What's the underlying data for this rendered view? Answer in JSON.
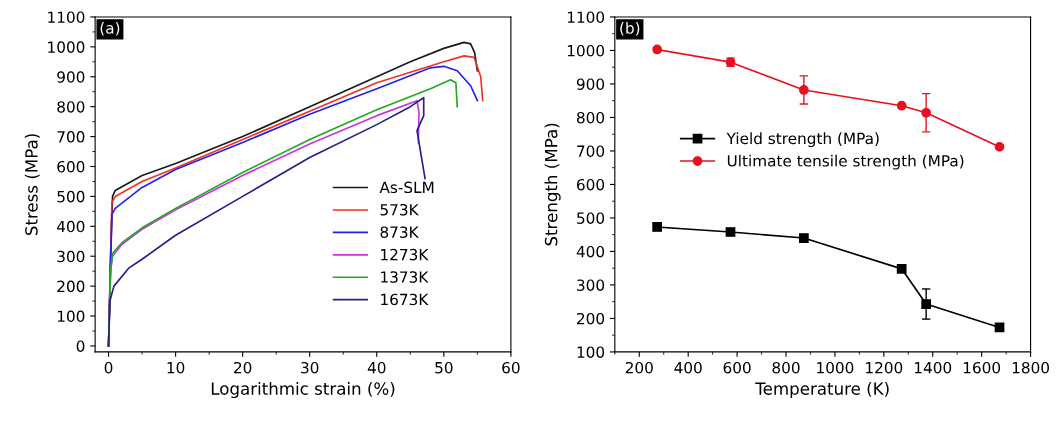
{
  "chart_data": [
    {
      "type": "line",
      "xlabel": "Logarithmic strain (%)",
      "ylabel": "Stress (MPa)",
      "annotations": [
        "(a)"
      ],
      "xlim": [
        -2,
        60
      ],
      "ylim": [
        -20,
        1100
      ],
      "xticks": [
        0,
        10,
        20,
        30,
        40,
        50,
        60
      ],
      "yticks": [
        0,
        100,
        200,
        300,
        400,
        500,
        600,
        700,
        800,
        900,
        1000,
        1100
      ],
      "grid": false,
      "legend": "right",
      "marker": "none",
      "line_style": "solid",
      "series": [
        {
          "name": "As-SLM",
          "color": "#1a1a1a",
          "x": [
            0,
            0.3,
            0.6,
            1,
            5,
            10,
            20,
            30,
            40,
            45,
            50,
            53,
            54,
            54.6,
            55
          ],
          "values": [
            0,
            300,
            500,
            520,
            570,
            610,
            700,
            800,
            900,
            950,
            995,
            1015,
            1010,
            980,
            920
          ]
        },
        {
          "name": "573K",
          "color": "#ee3322",
          "x": [
            0,
            0.5,
            1,
            5,
            10,
            20,
            30,
            40,
            50,
            53,
            54.5,
            55.5,
            55.8
          ],
          "values": [
            0,
            480,
            500,
            550,
            595,
            690,
            785,
            880,
            950,
            970,
            965,
            900,
            820
          ]
        },
        {
          "name": "873K",
          "color": "#2222ee",
          "x": [
            0,
            0.5,
            1,
            5,
            10,
            20,
            30,
            40,
            48,
            50,
            52,
            54,
            55
          ],
          "values": [
            0,
            440,
            460,
            530,
            590,
            680,
            775,
            860,
            930,
            935,
            920,
            870,
            820
          ]
        },
        {
          "name": "1273K",
          "color": "#cc33dd",
          "x": [
            0,
            0.3,
            0.6,
            2,
            5,
            10,
            20,
            30,
            40,
            46,
            46.3,
            46.2
          ],
          "values": [
            0,
            250,
            300,
            340,
            390,
            455,
            570,
            675,
            770,
            820,
            780,
            680
          ]
        },
        {
          "name": "1373K",
          "color": "#22aa22",
          "x": [
            0,
            0.3,
            0.6,
            2,
            5,
            10,
            20,
            30,
            40,
            48,
            51,
            51.8,
            52
          ],
          "values": [
            0,
            250,
            310,
            345,
            395,
            460,
            580,
            690,
            790,
            860,
            890,
            880,
            800
          ]
        },
        {
          "name": "1673K",
          "color": "#222288",
          "x": [
            0,
            0.2,
            0.8,
            3,
            5,
            10,
            20,
            30,
            40,
            45,
            47,
            47,
            46,
            47.2
          ],
          "values": [
            0,
            150,
            200,
            260,
            290,
            370,
            500,
            630,
            740,
            800,
            830,
            770,
            720,
            560
          ]
        }
      ]
    },
    {
      "type": "line",
      "xlabel": "Temperature (K)",
      "ylabel": "Strength (MPa)",
      "annotations": [
        "(b)"
      ],
      "xlim": [
        100,
        1800
      ],
      "ylim": [
        100,
        1100
      ],
      "xticks": [
        200,
        400,
        600,
        800,
        1000,
        1200,
        1400,
        1600,
        1800
      ],
      "yticks": [
        100,
        200,
        300,
        400,
        500,
        600,
        700,
        800,
        900,
        1000,
        1100
      ],
      "grid": false,
      "legend": "center",
      "line_style": "solid",
      "x": [
        273,
        573,
        873,
        1273,
        1373,
        1673
      ],
      "series": [
        {
          "name": "Yield strength (MPa)",
          "color": "#000000",
          "marker": "square",
          "values": [
            473,
            458,
            440,
            348,
            243,
            173
          ],
          "errors": [
            null,
            null,
            null,
            null,
            45,
            null
          ]
        },
        {
          "name": "Ultimate tensile strength (MPa)",
          "color": "#e8101f",
          "marker": "circle",
          "values": [
            1003,
            965,
            882,
            835,
            814,
            712
          ],
          "errors": [
            null,
            12,
            42,
            null,
            57,
            null
          ]
        }
      ]
    }
  ]
}
